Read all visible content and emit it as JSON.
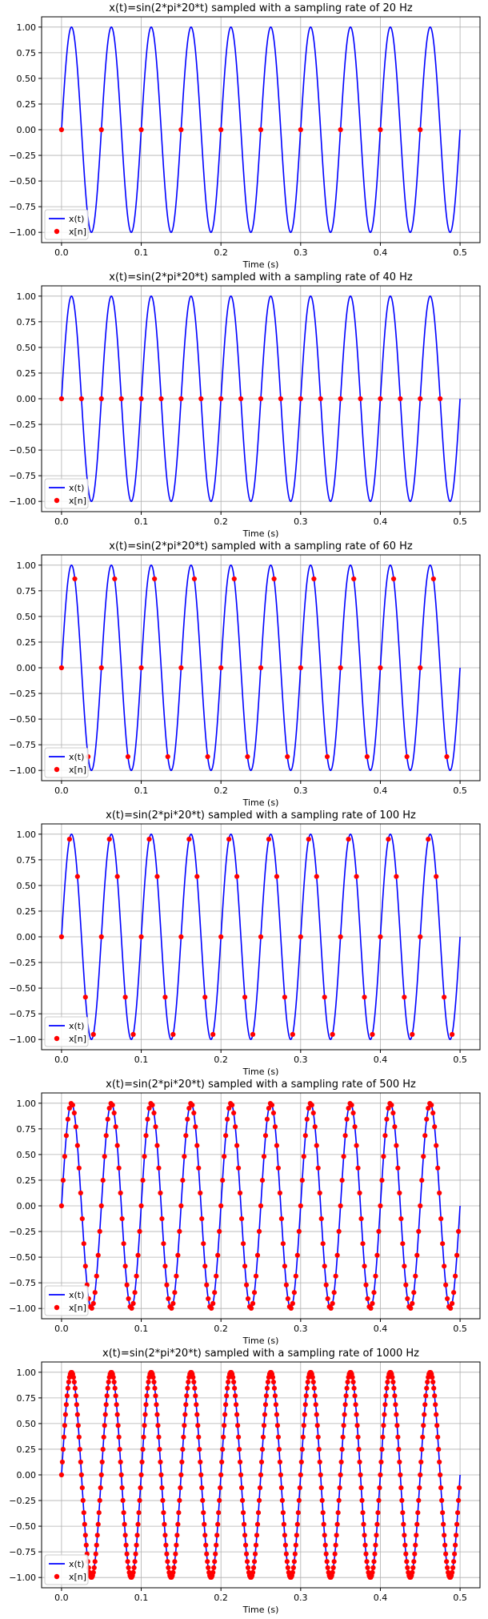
{
  "colors": {
    "signal": "#0000ff",
    "samples": "#ff0000",
    "grid": "#b0b0b0",
    "axes": "#000000"
  },
  "chart_data": [
    {
      "type": "line",
      "title": "x(t)=sin(2*pi*20*t) sampled with a sampling rate of 20 Hz",
      "xlabel": "Time (s)",
      "ylabel": "",
      "signal_frequency_hz": 20,
      "sampling_rate_hz": 20,
      "xlim": [
        -0.025,
        0.525
      ],
      "ylim": [
        -1.1,
        1.1
      ],
      "xticks": [
        0.0,
        0.1,
        0.2,
        0.3,
        0.4,
        0.5
      ],
      "xticklabels": [
        "0.0",
        "0.1",
        "0.2",
        "0.3",
        "0.4",
        "0.5"
      ],
      "yticks": [
        1.0,
        0.75,
        0.5,
        0.25,
        0.0,
        -0.25,
        -0.5,
        -0.75,
        -1.0
      ],
      "yticklabels": [
        "1.00",
        "0.75",
        "0.50",
        "0.25",
        "0.00",
        "−0.25",
        "−0.50",
        "−0.75",
        "−1.00"
      ],
      "grid": true,
      "legend_position": "lower-left",
      "series": [
        {
          "name": "x(t)",
          "kind": "line",
          "t_range": [
            0,
            0.5
          ]
        },
        {
          "name": "x[n]",
          "kind": "points",
          "t_range": [
            0,
            0.5
          ],
          "step": 0.05
        }
      ]
    },
    {
      "type": "line",
      "title": "x(t)=sin(2*pi*20*t) sampled with a sampling rate of 40 Hz",
      "xlabel": "Time (s)",
      "ylabel": "",
      "signal_frequency_hz": 20,
      "sampling_rate_hz": 40,
      "xlim": [
        -0.025,
        0.525
      ],
      "ylim": [
        -1.1,
        1.1
      ],
      "xticks": [
        0.0,
        0.1,
        0.2,
        0.3,
        0.4,
        0.5
      ],
      "xticklabels": [
        "0.0",
        "0.1",
        "0.2",
        "0.3",
        "0.4",
        "0.5"
      ],
      "yticks": [
        1.0,
        0.75,
        0.5,
        0.25,
        0.0,
        -0.25,
        -0.5,
        -0.75,
        -1.0
      ],
      "yticklabels": [
        "1.00",
        "0.75",
        "0.50",
        "0.25",
        "0.00",
        "−0.25",
        "−0.50",
        "−0.75",
        "−1.00"
      ],
      "grid": true,
      "legend_position": "lower-left",
      "series": [
        {
          "name": "x(t)",
          "kind": "line",
          "t_range": [
            0,
            0.5
          ]
        },
        {
          "name": "x[n]",
          "kind": "points",
          "t_range": [
            0,
            0.5
          ],
          "step": 0.025
        }
      ]
    },
    {
      "type": "line",
      "title": "x(t)=sin(2*pi*20*t) sampled with a sampling rate of 60 Hz",
      "xlabel": "Time (s)",
      "ylabel": "",
      "signal_frequency_hz": 20,
      "sampling_rate_hz": 60,
      "xlim": [
        -0.025,
        0.525
      ],
      "ylim": [
        -1.1,
        1.1
      ],
      "xticks": [
        0.0,
        0.1,
        0.2,
        0.3,
        0.4,
        0.5
      ],
      "xticklabels": [
        "0.0",
        "0.1",
        "0.2",
        "0.3",
        "0.4",
        "0.5"
      ],
      "yticks": [
        1.0,
        0.75,
        0.5,
        0.25,
        0.0,
        -0.25,
        -0.5,
        -0.75,
        -1.0
      ],
      "yticklabels": [
        "1.00",
        "0.75",
        "0.50",
        "0.25",
        "0.00",
        "−0.25",
        "−0.50",
        "−0.75",
        "−1.00"
      ],
      "grid": true,
      "legend_position": "lower-left",
      "series": [
        {
          "name": "x(t)",
          "kind": "line",
          "t_range": [
            0,
            0.5
          ]
        },
        {
          "name": "x[n]",
          "kind": "points",
          "t_range": [
            0,
            0.5
          ],
          "step": 0.016667
        }
      ]
    },
    {
      "type": "line",
      "title": "x(t)=sin(2*pi*20*t) sampled with a sampling rate of 100 Hz",
      "xlabel": "Time (s)",
      "ylabel": "",
      "signal_frequency_hz": 20,
      "sampling_rate_hz": 100,
      "xlim": [
        -0.025,
        0.525
      ],
      "ylim": [
        -1.1,
        1.1
      ],
      "xticks": [
        0.0,
        0.1,
        0.2,
        0.3,
        0.4,
        0.5
      ],
      "xticklabels": [
        "0.0",
        "0.1",
        "0.2",
        "0.3",
        "0.4",
        "0.5"
      ],
      "yticks": [
        1.0,
        0.75,
        0.5,
        0.25,
        0.0,
        -0.25,
        -0.5,
        -0.75,
        -1.0
      ],
      "yticklabels": [
        "1.00",
        "0.75",
        "0.50",
        "0.25",
        "0.00",
        "−0.25",
        "−0.50",
        "−0.75",
        "−1.00"
      ],
      "grid": true,
      "legend_position": "lower-left",
      "series": [
        {
          "name": "x(t)",
          "kind": "line",
          "t_range": [
            0,
            0.5
          ]
        },
        {
          "name": "x[n]",
          "kind": "points",
          "t_range": [
            0,
            0.5
          ],
          "step": 0.01
        }
      ]
    },
    {
      "type": "line",
      "title": "x(t)=sin(2*pi*20*t) sampled with a sampling rate of 500 Hz",
      "xlabel": "Time (s)",
      "ylabel": "",
      "signal_frequency_hz": 20,
      "sampling_rate_hz": 500,
      "xlim": [
        -0.025,
        0.525
      ],
      "ylim": [
        -1.1,
        1.1
      ],
      "xticks": [
        0.0,
        0.1,
        0.2,
        0.3,
        0.4,
        0.5
      ],
      "xticklabels": [
        "0.0",
        "0.1",
        "0.2",
        "0.3",
        "0.4",
        "0.5"
      ],
      "yticks": [
        1.0,
        0.75,
        0.5,
        0.25,
        0.0,
        -0.25,
        -0.5,
        -0.75,
        -1.0
      ],
      "yticklabels": [
        "1.00",
        "0.75",
        "0.50",
        "0.25",
        "0.00",
        "−0.25",
        "−0.50",
        "−0.75",
        "−1.00"
      ],
      "grid": true,
      "legend_position": "lower-left",
      "series": [
        {
          "name": "x(t)",
          "kind": "line",
          "t_range": [
            0,
            0.5
          ]
        },
        {
          "name": "x[n]",
          "kind": "points",
          "t_range": [
            0,
            0.5
          ],
          "step": 0.002
        }
      ]
    },
    {
      "type": "line",
      "title": "x(t)=sin(2*pi*20*t) sampled with a sampling rate of 1000 Hz",
      "xlabel": "Time (s)",
      "ylabel": "",
      "signal_frequency_hz": 20,
      "sampling_rate_hz": 1000,
      "xlim": [
        -0.025,
        0.525
      ],
      "ylim": [
        -1.1,
        1.1
      ],
      "xticks": [
        0.0,
        0.1,
        0.2,
        0.3,
        0.4,
        0.5
      ],
      "xticklabels": [
        "0.0",
        "0.1",
        "0.2",
        "0.3",
        "0.4",
        "0.5"
      ],
      "yticks": [
        1.0,
        0.75,
        0.5,
        0.25,
        0.0,
        -0.25,
        -0.5,
        -0.75,
        -1.0
      ],
      "yticklabels": [
        "1.00",
        "0.75",
        "0.50",
        "0.25",
        "0.00",
        "−0.25",
        "−0.50",
        "−0.75",
        "−1.00"
      ],
      "grid": true,
      "legend_position": "lower-left",
      "series": [
        {
          "name": "x(t)",
          "kind": "line",
          "t_range": [
            0,
            0.5
          ]
        },
        {
          "name": "x[n]",
          "kind": "points",
          "t_range": [
            0,
            0.5
          ],
          "step": 0.001
        }
      ]
    }
  ]
}
